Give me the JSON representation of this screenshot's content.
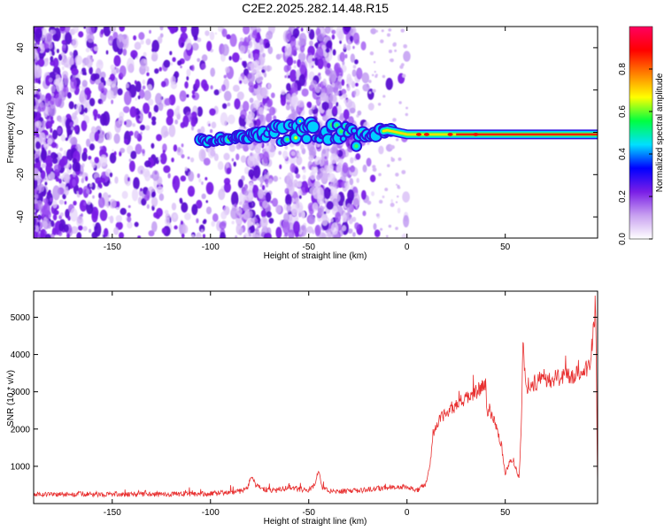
{
  "title": "C2E2.2025.282.14.48.R15",
  "chart_data": [
    {
      "type": "heatmap",
      "name": "spectrogram",
      "xlabel": "Height of straight line (km)",
      "ylabel": "Frequency (Hz)",
      "xlim": [
        -190,
        97
      ],
      "ylim": [
        -50,
        50
      ],
      "xticks": [
        -150,
        -100,
        -50,
        0,
        50
      ],
      "yticks": [
        -40,
        -20,
        0,
        20,
        40
      ],
      "colorbar": {
        "label": "Normalized spectral amplitude",
        "range": [
          0,
          1
        ],
        "ticks": [
          0,
          0.2,
          0.4,
          0.6,
          0.8
        ],
        "tick_labels": [
          "0.0",
          "0.2",
          "0.4",
          "0.6",
          "0.8"
        ],
        "colors": [
          "#ffffff",
          "#c8a0f0",
          "#7a1ee6",
          "#0000ff",
          "#00e0ff",
          "#00ff40",
          "#ffff00",
          "#ff8000",
          "#ff0000",
          "#ff0060"
        ]
      },
      "ridge": {
        "x": [
          -105,
          -90,
          -80,
          -70,
          -60,
          -50,
          -40,
          -30,
          -20,
          -10,
          0,
          10,
          20,
          40,
          60,
          80,
          95
        ],
        "freq": [
          -4,
          -3,
          -2,
          -1,
          0,
          1,
          0,
          -2,
          -1,
          1,
          -1,
          -1,
          -1,
          -1,
          -1,
          -1,
          -1
        ]
      }
    },
    {
      "type": "line",
      "name": "snr",
      "xlabel": "Height of straight line (km)",
      "ylabel": "SNR (10 * v/v)",
      "xlim": [
        -190,
        97
      ],
      "ylim": [
        0,
        5700
      ],
      "xticks": [
        -150,
        -100,
        -50,
        0,
        50
      ],
      "yticks": [
        1000,
        2000,
        3000,
        4000,
        5000
      ],
      "color": "#e83030",
      "series": [
        {
          "name": "SNR",
          "x": [
            -190,
            -170,
            -150,
            -130,
            -110,
            -95,
            -85,
            -81,
            -79,
            -77,
            -72,
            -66,
            -60,
            -55,
            -50,
            -47,
            -45,
            -43,
            -40,
            -35,
            -30,
            -25,
            -20,
            -10,
            0,
            5,
            10,
            12,
            14,
            16,
            20,
            25,
            30,
            35,
            40,
            41,
            42,
            45,
            48,
            50,
            51,
            53,
            55,
            57,
            58,
            59,
            61,
            62,
            70,
            80,
            90,
            93,
            94,
            95,
            96,
            97
          ],
          "y": [
            250,
            250,
            250,
            250,
            250,
            280,
            330,
            450,
            750,
            500,
            380,
            350,
            450,
            380,
            350,
            500,
            900,
            400,
            350,
            330,
            330,
            340,
            380,
            430,
            450,
            350,
            550,
            1200,
            2000,
            2200,
            2450,
            2650,
            2800,
            3000,
            3150,
            2400,
            2450,
            2150,
            1600,
            800,
            950,
            1200,
            1000,
            700,
            1800,
            4200,
            3100,
            3200,
            3300,
            3400,
            3550,
            3700,
            4200,
            4800,
            5400,
            500
          ]
        }
      ]
    }
  ]
}
